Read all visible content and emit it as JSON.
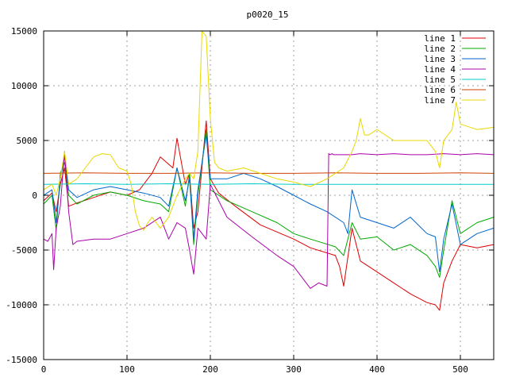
{
  "chart_data": {
    "type": "line",
    "title": "p0020_15",
    "xlabel": "",
    "ylabel": "",
    "xlim": [
      0,
      540
    ],
    "ylim": [
      -15000,
      15000
    ],
    "xticks": [
      0,
      100,
      200,
      300,
      400,
      500
    ],
    "yticks": [
      -15000,
      -10000,
      -5000,
      0,
      5000,
      10000,
      15000
    ],
    "grid": true,
    "legend_position": "top-right",
    "series": [
      {
        "name": "line 1",
        "color": "#dd0000",
        "x": [
          0,
          10,
          15,
          20,
          25,
          30,
          40,
          60,
          80,
          100,
          115,
          130,
          140,
          155,
          160,
          170,
          175,
          180,
          185,
          195,
          200,
          210,
          230,
          260,
          300,
          320,
          350,
          355,
          360,
          370,
          380,
          390,
          400,
          420,
          440,
          460,
          470,
          475,
          480,
          490,
          500,
          520,
          540
        ],
        "y": [
          -500,
          200,
          -1500,
          1000,
          2500,
          -1000,
          -700,
          -200,
          300,
          0,
          500,
          2000,
          3500,
          2500,
          5200,
          1000,
          2000,
          -3000,
          -1500,
          6800,
          1500,
          200,
          -1000,
          -2700,
          -4000,
          -4800,
          -5500,
          -6500,
          -8300,
          -3000,
          -6000,
          -6500,
          -7000,
          -8000,
          -9000,
          -9800,
          -10000,
          -10500,
          -8000,
          -6000,
          -4500,
          -4800,
          -4500
        ]
      },
      {
        "name": "line 2",
        "color": "#00aa00",
        "x": [
          0,
          10,
          15,
          20,
          25,
          30,
          40,
          60,
          80,
          100,
          120,
          140,
          150,
          160,
          170,
          175,
          180,
          185,
          195,
          200,
          220,
          250,
          280,
          300,
          320,
          350,
          360,
          370,
          380,
          400,
          420,
          440,
          460,
          470,
          475,
          480,
          490,
          500,
          520,
          540
        ],
        "y": [
          -800,
          0,
          -3200,
          2000,
          3000,
          0,
          -800,
          0,
          300,
          0,
          -500,
          -800,
          -1500,
          2500,
          -1000,
          2000,
          -4500,
          0,
          6000,
          500,
          -500,
          -1500,
          -2500,
          -3500,
          -4000,
          -4700,
          -5500,
          -2500,
          -4000,
          -3800,
          -5000,
          -4500,
          -5500,
          -6500,
          -7500,
          -5000,
          -500,
          -3500,
          -2500,
          -2000
        ]
      },
      {
        "name": "line 3",
        "color": "#0066cc",
        "x": [
          0,
          10,
          15,
          20,
          25,
          30,
          40,
          60,
          80,
          100,
          120,
          140,
          150,
          160,
          170,
          175,
          180,
          185,
          195,
          200,
          220,
          240,
          260,
          280,
          300,
          320,
          340,
          360,
          365,
          370,
          380,
          400,
          420,
          440,
          460,
          470,
          475,
          480,
          490,
          500,
          520,
          540
        ],
        "y": [
          0,
          500,
          -2500,
          1500,
          3500,
          500,
          -200,
          500,
          800,
          500,
          200,
          -200,
          -1000,
          2500,
          -500,
          1500,
          -4000,
          500,
          5500,
          1500,
          1500,
          2000,
          1500,
          800,
          0,
          -800,
          -1500,
          -2500,
          -3500,
          500,
          -2000,
          -2500,
          -3000,
          -2000,
          -3500,
          -3800,
          -7000,
          -4000,
          -800,
          -4500,
          -3500,
          -3000
        ]
      },
      {
        "name": "line 4",
        "color": "#aa00aa",
        "x": [
          0,
          5,
          10,
          12,
          15,
          20,
          25,
          30,
          35,
          40,
          60,
          80,
          100,
          120,
          140,
          150,
          160,
          170,
          175,
          180,
          185,
          195,
          200,
          220,
          250,
          280,
          300,
          320,
          330,
          340,
          342,
          344,
          346,
          348,
          350,
          355,
          360,
          365,
          370,
          380,
          400,
          420,
          440,
          460,
          480,
          500,
          520,
          540
        ],
        "y": [
          -4000,
          -4200,
          -3500,
          -6800,
          -3000,
          -1000,
          4000,
          -1500,
          -4500,
          -4200,
          -4000,
          -4000,
          -3500,
          -3000,
          -2000,
          -4000,
          -2500,
          -3000,
          -5000,
          -7200,
          -3000,
          -4000,
          1000,
          -2000,
          -3800,
          -5500,
          -6500,
          -8500,
          -8000,
          -8300,
          3800,
          3700,
          3800,
          3700,
          3700,
          3700,
          3700,
          3700,
          3700,
          3800,
          3700,
          3800,
          3700,
          3700,
          3800,
          3700,
          3800,
          3700
        ]
      },
      {
        "name": "line 5",
        "color": "#00cccc",
        "x": [
          0,
          50,
          100,
          150,
          200,
          250,
          300,
          350,
          400,
          450,
          500,
          540
        ],
        "y": [
          1000,
          1050,
          1000,
          1050,
          1000,
          1050,
          1000,
          1000,
          1000,
          1000,
          1000,
          1000
        ]
      },
      {
        "name": "line 6",
        "color": "#cc4400",
        "x": [
          0,
          50,
          100,
          150,
          200,
          250,
          300,
          350,
          400,
          450,
          500,
          540
        ],
        "y": [
          2000,
          2050,
          2000,
          2000,
          2050,
          2000,
          2000,
          2050,
          2000,
          2000,
          2050,
          2000
        ]
      },
      {
        "name": "line 7",
        "color": "#e8d800",
        "x": [
          0,
          10,
          15,
          20,
          25,
          30,
          40,
          50,
          60,
          70,
          80,
          90,
          100,
          105,
          110,
          115,
          120,
          125,
          130,
          140,
          150,
          160,
          170,
          175,
          180,
          185,
          190,
          195,
          200,
          205,
          210,
          220,
          240,
          260,
          280,
          300,
          320,
          340,
          360,
          370,
          375,
          380,
          385,
          390,
          400,
          420,
          440,
          460,
          470,
          475,
          480,
          490,
          495,
          500,
          520,
          540
        ],
        "y": [
          500,
          1000,
          0,
          1500,
          4000,
          1000,
          1500,
          2500,
          3500,
          3800,
          3700,
          2500,
          2200,
          1000,
          -1500,
          -2800,
          -3200,
          -2500,
          -2000,
          -3000,
          -2000,
          0,
          1500,
          2000,
          1500,
          4000,
          15000,
          14500,
          7000,
          3000,
          2500,
          2200,
          2500,
          2000,
          1500,
          1200,
          800,
          1500,
          2500,
          4000,
          5000,
          7000,
          5500,
          5500,
          6000,
          5000,
          5000,
          5000,
          4000,
          2500,
          5000,
          6000,
          8500,
          6500,
          6000,
          6200
        ]
      }
    ]
  }
}
